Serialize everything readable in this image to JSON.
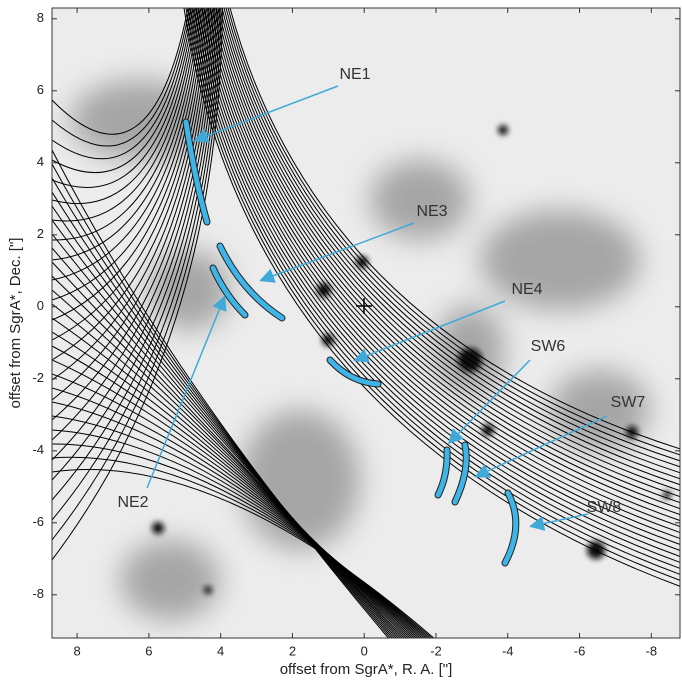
{
  "chart_data": {
    "type": "image",
    "xlabel": "offset from SgrA*, R. A. [\"]",
    "ylabel": "offset from SgrA*, Dec. [\"]",
    "xlim": [
      8.7,
      -8.8
    ],
    "xticks": [
      8,
      6,
      4,
      2,
      0,
      -2,
      -4,
      -6,
      -8
    ],
    "ylim": [
      -9.2,
      8.3
    ],
    "yticks": [
      8,
      6,
      4,
      2,
      0,
      -2,
      -4,
      -6,
      -8
    ],
    "features": [
      {
        "label": "NE1"
      },
      {
        "label": "NE3"
      },
      {
        "label": "NE2"
      },
      {
        "label": "NE4"
      },
      {
        "label": "SW6"
      },
      {
        "label": "SW7"
      },
      {
        "label": "SW8"
      }
    ]
  }
}
